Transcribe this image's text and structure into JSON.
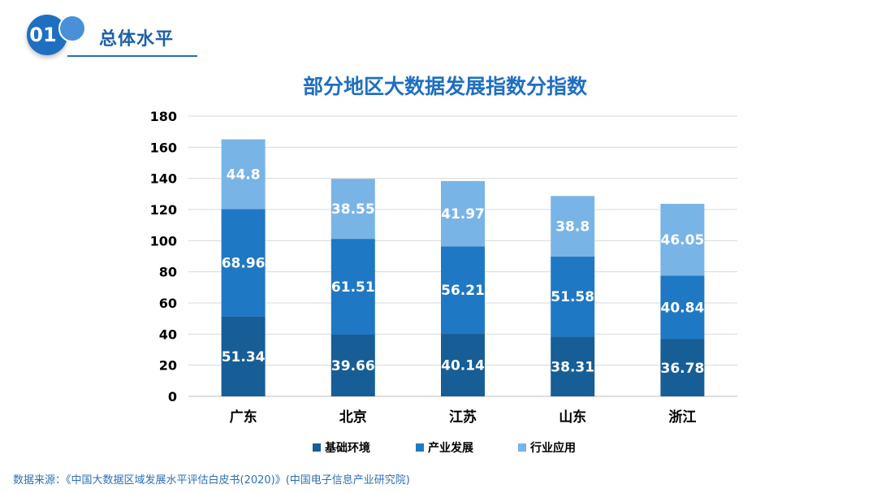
{
  "header": {
    "section_number": "01",
    "section_title": "总体水平"
  },
  "colors": {
    "base": "#175d96",
    "industry": "#1f78c4",
    "application": "#79b4e7",
    "accent": "#1f6fc0"
  },
  "chart_data": {
    "type": "bar",
    "stacked": true,
    "title": "部分地区大数据发展指数分指数",
    "xlabel": "",
    "ylabel": "",
    "categories": [
      "广东",
      "北京",
      "江苏",
      "山东",
      "浙江"
    ],
    "series": [
      {
        "name": "基础环境",
        "values": [
          51.34,
          39.66,
          40.14,
          38.31,
          36.78
        ]
      },
      {
        "name": "产业发展",
        "values": [
          68.96,
          61.51,
          56.21,
          51.58,
          40.84
        ]
      },
      {
        "name": "行业应用",
        "values": [
          44.8,
          38.55,
          41.97,
          38.8,
          46.05
        ]
      }
    ],
    "ylim": [
      0,
      180
    ],
    "yticks": [
      "0",
      "20",
      "40",
      "60",
      "80",
      "100",
      "120",
      "140",
      "160",
      "180"
    ],
    "value_labels": [
      [
        "51.34",
        "39.66",
        "40.14",
        "38.31",
        "36.78"
      ],
      [
        "68.96",
        "61.51",
        "56.21",
        "51.58",
        "40.84"
      ],
      [
        "44.8",
        "38.55",
        "41.97",
        "38.8",
        "46.05"
      ]
    ],
    "grid": true,
    "legend_position": "bottom"
  },
  "source_note": "数据来源：《中国大数据区域发展水平评估白皮书(2020)》(中国电子信息产业研究院)"
}
